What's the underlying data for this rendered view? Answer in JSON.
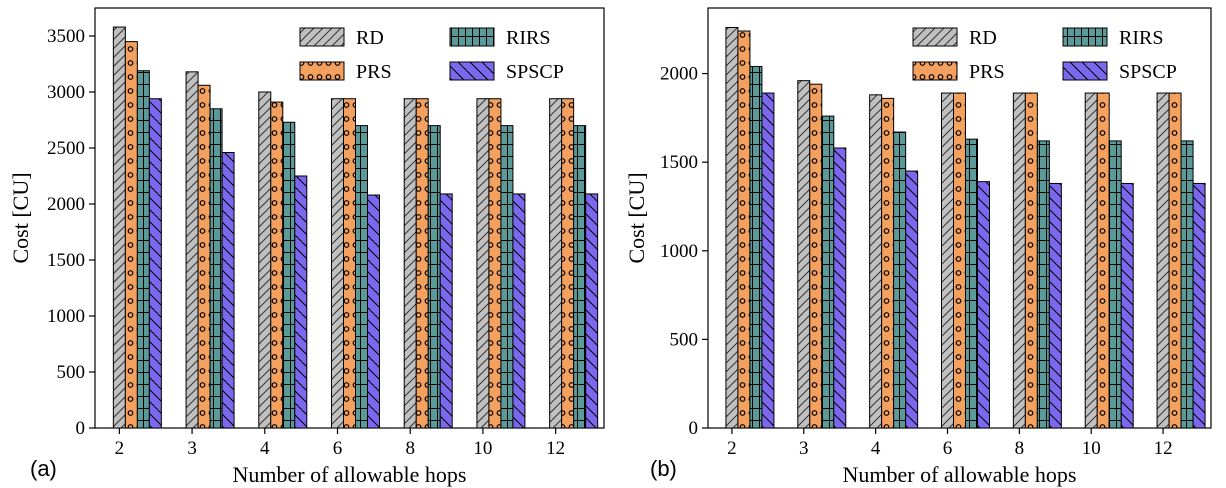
{
  "colors": {
    "RD": "#c0c0c0",
    "PRS": "#f4a15f",
    "RIRS": "#5a9a99",
    "SPSCP": "#7b68ee"
  },
  "chart_data": [
    {
      "type": "bar",
      "panel_label": "(a)",
      "xlabel": "Number of allowable hops",
      "ylabel": "Cost [CU]",
      "categories": [
        "2",
        "3",
        "4",
        "6",
        "8",
        "10",
        "12"
      ],
      "ylim": [
        0,
        3750
      ],
      "yticks": [
        "0",
        "500",
        "1000",
        "1500",
        "2000",
        "2500",
        "3000",
        "3500"
      ],
      "legend": "top-right",
      "series": [
        {
          "name": "RD",
          "values": [
            3580,
            3180,
            3000,
            2940,
            2940,
            2940,
            2940
          ]
        },
        {
          "name": "PRS",
          "values": [
            3450,
            3060,
            2910,
            2940,
            2940,
            2940,
            2940
          ]
        },
        {
          "name": "RIRS",
          "values": [
            3190,
            2850,
            2730,
            2700,
            2700,
            2700,
            2700
          ]
        },
        {
          "name": "SPSCP",
          "values": [
            2940,
            2460,
            2250,
            2080,
            2090,
            2090,
            2090
          ]
        }
      ]
    },
    {
      "type": "bar",
      "panel_label": "(b)",
      "xlabel": "Number of allowable hops",
      "ylabel": "Cost [CU]",
      "categories": [
        "2",
        "3",
        "4",
        "6",
        "8",
        "10",
        "12"
      ],
      "ylim": [
        0,
        2370
      ],
      "yticks": [
        "0",
        "500",
        "1000",
        "1500",
        "2000"
      ],
      "legend": "top-right",
      "series": [
        {
          "name": "RD",
          "values": [
            2260,
            1960,
            1880,
            1890,
            1890,
            1890,
            1890
          ]
        },
        {
          "name": "PRS",
          "values": [
            2240,
            1940,
            1860,
            1890,
            1890,
            1890,
            1890
          ]
        },
        {
          "name": "RIRS",
          "values": [
            2040,
            1760,
            1670,
            1630,
            1620,
            1620,
            1620
          ]
        },
        {
          "name": "SPSCP",
          "values": [
            1890,
            1580,
            1450,
            1390,
            1380,
            1380,
            1380
          ]
        }
      ]
    }
  ]
}
